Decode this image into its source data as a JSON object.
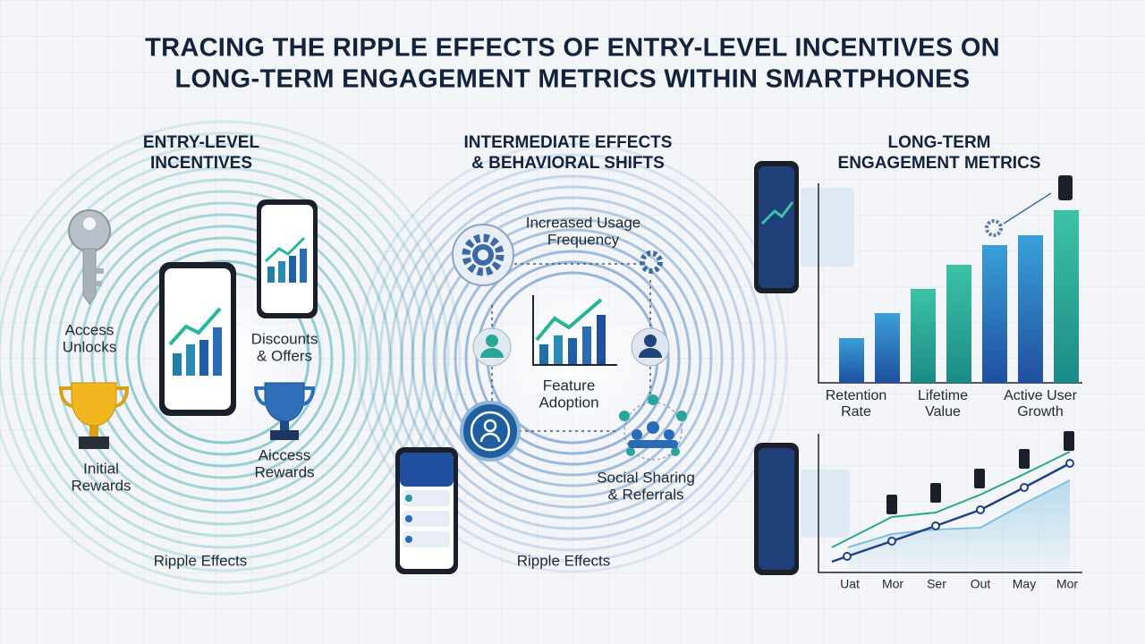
{
  "title": [
    "TRACING THE RIPPLE EFFECTS OF ENTRY-LEVEL INCENTIVES ON",
    "LONG-TERM ENGAGEMENT METRICS WITHIN SMARTPHONES"
  ],
  "entry": {
    "heading": [
      "ENTRY-LEVEL",
      "INCENTIVES"
    ],
    "items": [
      [
        "Access",
        "Unlocks"
      ],
      [
        "Discounts",
        "& Offers"
      ],
      [
        "Initial",
        "Rewards"
      ],
      [
        "Aiccess",
        "Rewards"
      ]
    ],
    "footer": "Ripple Effects"
  },
  "intermediate": {
    "heading": [
      "INTERMEDIATE EFFECTS",
      "& BEHAVIORAL SHIFTS"
    ],
    "items": [
      [
        "Increased Usage",
        "Frequency"
      ],
      [
        "Feature",
        "Adoption"
      ],
      [
        "Social Sharing",
        "& Referrals"
      ]
    ],
    "footer": "Ripple Effects"
  },
  "long_term": {
    "heading": [
      "LONG-TERM",
      "ENGAGEMENT METRICS"
    ],
    "bar_labels": [
      [
        "Retention",
        "Rate"
      ],
      [
        "Lifetime",
        "Value"
      ],
      [
        "Active User",
        "Growth"
      ]
    ],
    "line_labels": [
      "Uat",
      "Mor",
      "Ser",
      "Out",
      "May",
      "Mor"
    ]
  }
}
